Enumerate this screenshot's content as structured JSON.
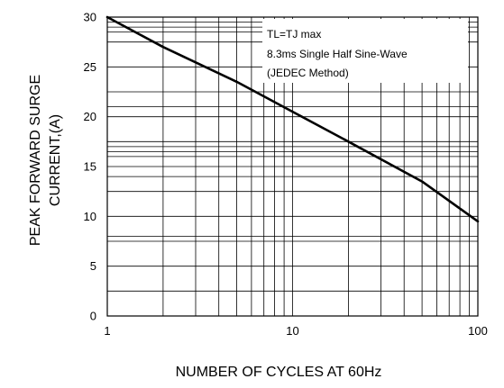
{
  "chart_data": {
    "type": "line",
    "title": "",
    "xlabel": "NUMBER OF CYCLES AT 60Hz",
    "ylabel_lines": [
      "PEAK FORWARD SURGE",
      "CURRENT,(A)"
    ],
    "x_scale": "log",
    "xlim": [
      1,
      100
    ],
    "ylim": [
      0,
      30
    ],
    "x_ticks": [
      1,
      10,
      100
    ],
    "x_tick_labels": [
      "1",
      "10",
      "100"
    ],
    "y_ticks": [
      0,
      5,
      10,
      15,
      20,
      25,
      30
    ],
    "y_tick_labels": [
      "0",
      "5",
      "10",
      "15",
      "20",
      "25",
      "30"
    ],
    "x_grid": [
      1,
      2,
      3,
      4,
      5,
      6,
      7,
      8,
      9,
      10,
      20,
      30,
      40,
      50,
      60,
      70,
      80,
      90,
      100
    ],
    "y_grid": [
      0,
      2.5,
      5,
      7.5,
      8,
      10,
      12.5,
      14,
      15,
      16,
      16.5,
      17,
      17.5,
      20,
      21,
      22.5,
      25,
      27.5,
      28.5,
      29,
      29.5,
      30
    ],
    "grid": true,
    "legend": "none",
    "annotations": [
      "TL=TJ max",
      "8.3ms Single Half Sine-Wave",
      "(JEDEC Method)"
    ],
    "annotation_position": "top-right",
    "series": [
      {
        "x": [
          1,
          2,
          5,
          10,
          20,
          50,
          100
        ],
        "y": [
          30,
          27,
          23.5,
          20.5,
          17.5,
          13.5,
          9.5
        ],
        "color": "#000000"
      }
    ]
  }
}
